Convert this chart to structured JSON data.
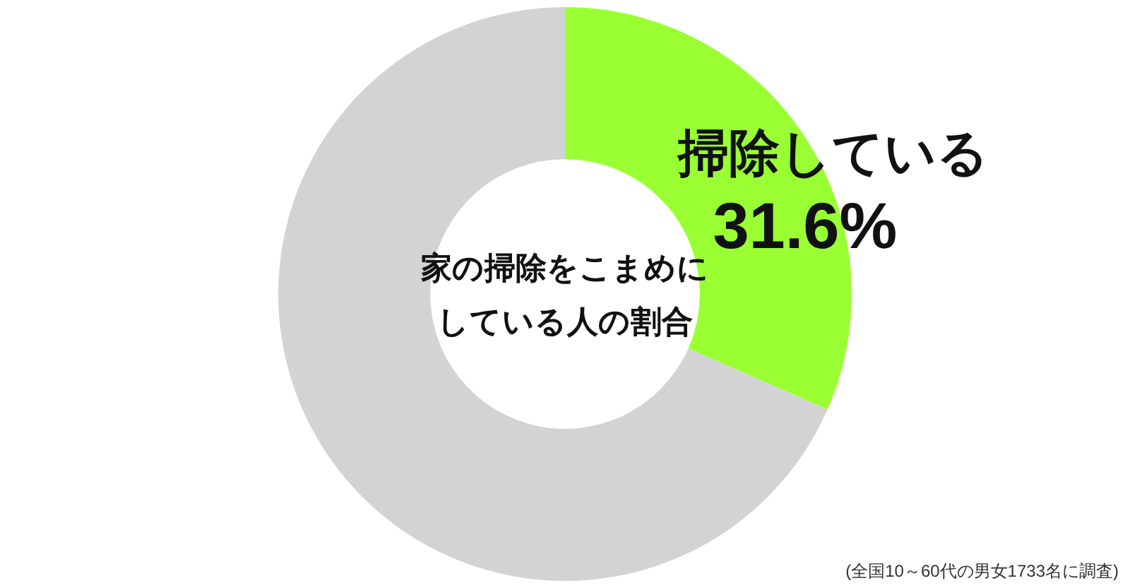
{
  "chart_data": {
    "type": "donut",
    "title": "家の掃除をこまめにしている人の割合",
    "categories": [
      "掃除している",
      null
    ],
    "values": [
      31.6,
      68.4
    ],
    "colors": [
      "#99ff33",
      "#d3d3d3"
    ],
    "value_labels": [
      "31.6%",
      null
    ],
    "annotations": [
      "(全国10～60代の男女1733名に調査)"
    ]
  }
}
